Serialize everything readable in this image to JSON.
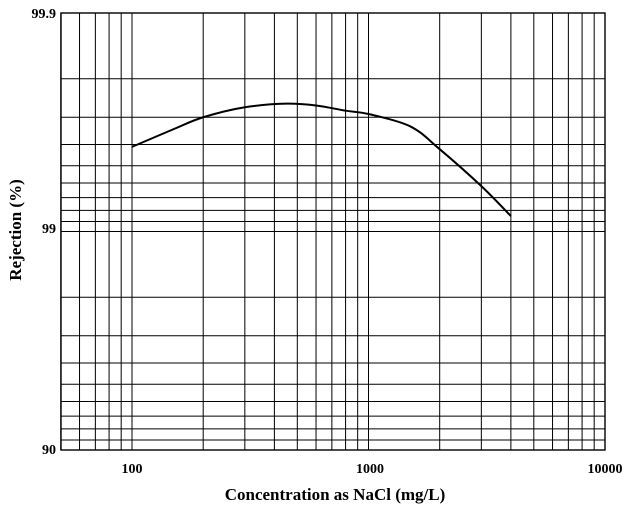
{
  "chart_data": {
    "type": "line",
    "title": "",
    "xlabel": "Concentration as NaCl (mg/L)",
    "ylabel": "Rejection (%)",
    "x_scale": "log",
    "y_scale": "log-reciprocal (rejection)",
    "xlim": [
      50,
      10000
    ],
    "ylim": [
      90,
      99.9
    ],
    "x_ticks": [
      100,
      1000,
      10000
    ],
    "x_tick_labels": [
      "100",
      "1000",
      "10000"
    ],
    "y_ticks": [
      90,
      99,
      99.9
    ],
    "y_tick_labels": [
      "90",
      "99",
      "99.9"
    ],
    "grid": true,
    "legend": "none",
    "series": [
      {
        "x": [
          100,
          150,
          200,
          300,
          450,
          600,
          800,
          1000,
          1500,
          2000,
          3000,
          4000
        ],
        "y": [
          99.59,
          99.66,
          99.7,
          99.73,
          99.74,
          99.735,
          99.72,
          99.71,
          99.67,
          99.58,
          99.38,
          99.15
        ]
      }
    ]
  }
}
